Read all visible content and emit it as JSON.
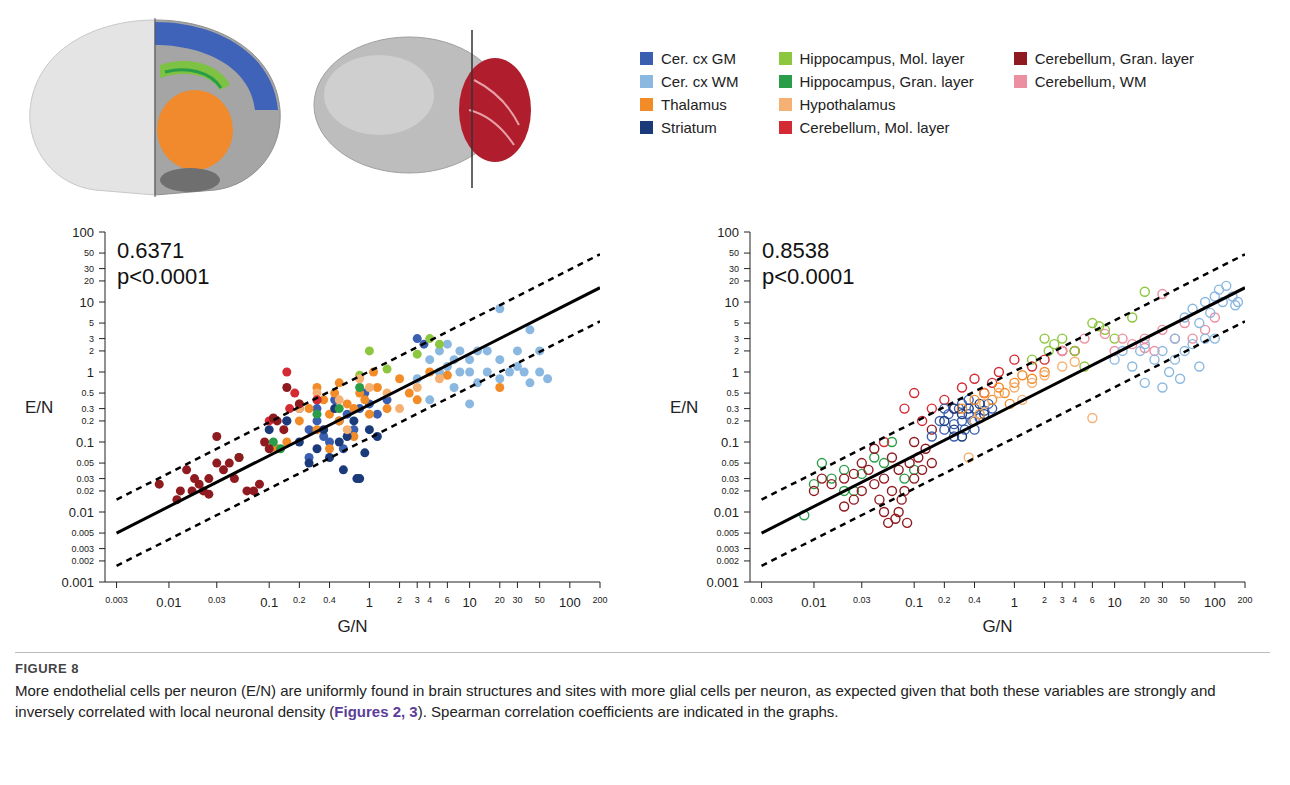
{
  "figure_label": "FIGURE 8",
  "caption": [
    "More endothelial cells per neuron (E/N) are uniformly found in brain structures and sites with more glial cells per neuron, as expected given that both these variables are strongly and inversely correlated with local neuronal density (",
    "Figures 2, 3",
    "). Spearman correlation coefficients are indicated in the graphs."
  ],
  "chart_data": [
    {
      "type": "scatter",
      "log": true,
      "marker": "circle",
      "x_label": "G/N",
      "y_label": "E/N",
      "spearman_r": 0.6371,
      "p_label": "p<0.0001",
      "xlim": [
        0.0023,
        200
      ],
      "ylim": [
        0.001,
        100
      ],
      "xticks": [
        0.003,
        0.01,
        0.03,
        0.1,
        0.2,
        0.4,
        1,
        2,
        3,
        4,
        6,
        10,
        20,
        30,
        50,
        100,
        200
      ],
      "yticks": [
        0.001,
        0.002,
        0.003,
        0.005,
        0.01,
        0.02,
        0.03,
        0.05,
        0.1,
        0.2,
        0.3,
        0.5,
        1,
        2,
        3,
        5,
        10,
        20,
        30,
        50,
        100
      ],
      "fit_lines": [
        {
          "x": [
            0.003,
            200
          ],
          "values": [
            0.005,
            16
          ],
          "line_style": "solid"
        },
        {
          "x": [
            0.003,
            200
          ],
          "values": [
            0.015,
            48
          ],
          "line_style": "dashed"
        },
        {
          "x": [
            0.003,
            200
          ],
          "values": [
            0.0017,
            5.3
          ],
          "line_style": "dashed"
        }
      ],
      "series": [
        {
          "name": "Cer. cx GM",
          "color": "#3a5fb0",
          "x": [
            0.15,
            0.2,
            0.25,
            0.3,
            0.35,
            0.4,
            0.5,
            0.6,
            0.7,
            0.8,
            1,
            1.2,
            0.45,
            0.55,
            0.25,
            0.9,
            3,
            3.5,
            1.5,
            0.3
          ],
          "values": [
            0.2,
            0.3,
            0.15,
            0.2,
            0.12,
            0.1,
            0.2,
            0.25,
            0.15,
            0.3,
            0.35,
            0.25,
            0.4,
            0.08,
            0.06,
            0.5,
            3,
            2.5,
            0.4,
            0.3
          ]
        },
        {
          "name": "Cer. cx WM",
          "color": "#8ab8e0",
          "x": [
            4,
            5,
            5,
            6,
            6,
            7,
            8,
            8,
            10,
            10,
            12,
            12,
            15,
            15,
            20,
            20,
            25,
            30,
            30,
            35,
            40,
            50,
            50,
            60,
            20,
            10,
            3,
            4,
            40,
            7
          ],
          "values": [
            1.5,
            2,
            1,
            1.2,
            2.5,
            1.5,
            1,
            2,
            1,
            1.5,
            2,
            0.7,
            1,
            2,
            1.5,
            0.8,
            1,
            1.2,
            2,
            1,
            0.7,
            1,
            2,
            0.8,
            8,
            0.35,
            0.8,
            0.4,
            4,
            0.6
          ]
        },
        {
          "name": "Thalamus",
          "color": "#f28c28",
          "x": [
            0.12,
            0.15,
            0.2,
            0.25,
            0.3,
            0.35,
            0.4,
            0.45,
            0.5,
            0.6,
            0.7,
            0.8,
            0.9,
            1,
            1.2,
            1.5,
            2,
            2.5,
            3,
            4,
            0.3,
            0.5,
            0.7,
            1.1,
            0.2,
            0.4,
            6,
            20
          ],
          "values": [
            0.08,
            0.1,
            0.2,
            0.3,
            0.15,
            0.4,
            0.25,
            0.5,
            0.2,
            0.35,
            0.3,
            0.5,
            0.4,
            0.25,
            0.6,
            0.3,
            0.8,
            0.5,
            0.4,
            1,
            0.6,
            0.7,
            0.12,
            1,
            0.35,
            0.08,
            0.9,
            0.6
          ]
        },
        {
          "name": "Striatum",
          "color": "#1b3a7a",
          "x": [
            0.15,
            0.2,
            0.25,
            0.3,
            0.35,
            0.4,
            0.5,
            0.6,
            0.7,
            0.75,
            0.8,
            0.9,
            1,
            0.45,
            0.55,
            1.2,
            0.3,
            0.1
          ],
          "values": [
            0.2,
            0.1,
            0.05,
            0.08,
            0.15,
            0.06,
            0.1,
            0.12,
            0.2,
            0.03,
            0.03,
            0.07,
            0.15,
            0.3,
            0.04,
            0.12,
            0.4,
            0.15
          ]
        },
        {
          "name": "Hippocampus, Mol. layer",
          "color": "#8dc63f",
          "x": [
            1,
            4,
            1.5,
            5,
            3,
            0.8
          ],
          "values": [
            2,
            3,
            1.1,
            2.5,
            1.8,
            0.9
          ]
        },
        {
          "name": "Hippocampus, Gran. layer",
          "color": "#2a9d48",
          "x": [
            0.05,
            0.11,
            0.3,
            0.5,
            0.8,
            0.13
          ],
          "values": [
            0.06,
            0.1,
            0.25,
            0.3,
            0.6,
            0.08
          ]
        },
        {
          "name": "Hypothalamus",
          "color": "#f5b173",
          "x": [
            0.2,
            0.3,
            0.5,
            0.8,
            1,
            1.5,
            2,
            0.6,
            3,
            5
          ],
          "values": [
            0.3,
            0.5,
            0.4,
            0.8,
            0.6,
            0.5,
            0.3,
            0.15,
            0.6,
            0.8
          ]
        },
        {
          "name": "Cerebellum, Mol. layer",
          "color": "#d42a33",
          "x": [
            0.15,
            0.18,
            0.16,
            0.3,
            0.1
          ],
          "values": [
            1,
            0.5,
            0.3,
            0.4,
            0.2
          ]
        },
        {
          "name": "Cerebellum, Gran. layer",
          "color": "#8f1a1f",
          "x": [
            0.008,
            0.012,
            0.013,
            0.015,
            0.017,
            0.02,
            0.022,
            0.025,
            0.03,
            0.03,
            0.035,
            0.04,
            0.045,
            0.05,
            0.06,
            0.07,
            0.08,
            0.09,
            0.1,
            0.12,
            0.14,
            0.15,
            0.2,
            0.11,
            0.025,
            0.018
          ],
          "values": [
            0.025,
            0.015,
            0.02,
            0.04,
            0.02,
            0.025,
            0.02,
            0.03,
            0.05,
            0.12,
            0.04,
            0.05,
            0.03,
            0.06,
            0.02,
            0.02,
            0.025,
            0.1,
            0.08,
            0.2,
            0.15,
            0.6,
            0.35,
            0.22,
            0.018,
            0.03
          ]
        }
      ]
    },
    {
      "type": "scatter",
      "log": true,
      "marker": "open_circle",
      "x_label": "G/N",
      "y_label": "E/N",
      "spearman_r": 0.8538,
      "p_label": "p<0.0001",
      "xlim": [
        0.0023,
        200
      ],
      "ylim": [
        0.001,
        100
      ],
      "xticks": [
        0.003,
        0.01,
        0.03,
        0.1,
        0.2,
        0.4,
        1,
        2,
        3,
        4,
        6,
        10,
        20,
        30,
        50,
        100,
        200
      ],
      "yticks": [
        0.001,
        0.002,
        0.003,
        0.005,
        0.01,
        0.02,
        0.03,
        0.05,
        0.1,
        0.2,
        0.3,
        0.5,
        1,
        2,
        3,
        5,
        10,
        20,
        30,
        50,
        100
      ],
      "fit_lines": [
        {
          "x": [
            0.003,
            200
          ],
          "values": [
            0.005,
            16
          ],
          "line_style": "solid"
        },
        {
          "x": [
            0.003,
            200
          ],
          "values": [
            0.015,
            48
          ],
          "line_style": "dashed"
        },
        {
          "x": [
            0.003,
            200
          ],
          "values": [
            0.0017,
            5.3
          ],
          "line_style": "dashed"
        }
      ],
      "series": [
        {
          "name": "Hippocampus, Gran. layer",
          "color": "#2a9d48",
          "x": [
            0.008,
            0.01,
            0.012,
            0.015,
            0.02,
            0.025,
            0.03,
            0.04,
            0.05,
            0.06,
            0.08,
            0.1,
            0.02
          ],
          "values": [
            0.009,
            0.025,
            0.05,
            0.03,
            0.04,
            0.02,
            0.035,
            0.06,
            0.05,
            0.1,
            0.03,
            0.04,
            0.02
          ]
        },
        {
          "name": "Cerebellum, Gran. layer",
          "color": "#8f1a1f",
          "x": [
            0.01,
            0.012,
            0.015,
            0.02,
            0.025,
            0.03,
            0.035,
            0.04,
            0.045,
            0.05,
            0.05,
            0.055,
            0.06,
            0.065,
            0.07,
            0.075,
            0.08,
            0.085,
            0.09,
            0.1,
            0.1,
            0.11,
            0.12,
            0.13,
            0.15,
            0.15,
            0.06,
            0.04,
            0.03,
            0.025,
            0.07,
            0.02
          ],
          "values": [
            0.02,
            0.03,
            0.025,
            0.03,
            0.015,
            0.02,
            0.04,
            0.025,
            0.015,
            0.03,
            0.01,
            0.007,
            0.02,
            0.008,
            0.04,
            0.015,
            0.02,
            0.007,
            0.05,
            0.03,
            0.1,
            0.06,
            0.04,
            0.08,
            0.05,
            0.15,
            0.06,
            0.08,
            0.05,
            0.035,
            0.01,
            0.012
          ]
        },
        {
          "name": "Cerebellum, Mol. layer",
          "color": "#d42a33",
          "x": [
            0.05,
            0.08,
            0.1,
            0.12,
            0.15,
            0.2,
            0.3,
            0.4,
            0.5,
            0.7,
            1,
            1.5,
            2,
            3,
            4,
            0.6,
            0.25
          ],
          "values": [
            0.1,
            0.3,
            0.5,
            0.2,
            0.3,
            0.4,
            0.6,
            0.8,
            0.5,
            1,
            1.5,
            1.2,
            1.5,
            2,
            2,
            0.7,
            0.3
          ]
        },
        {
          "name": "Cer. cx GM",
          "color": "#3a5fb0",
          "x": [
            0.15,
            0.18,
            0.2,
            0.22,
            0.25,
            0.28,
            0.3,
            0.32,
            0.35,
            0.38,
            0.4,
            0.45,
            0.5,
            0.55,
            0.6,
            0.25,
            0.3,
            0.4,
            0.2,
            0.35
          ],
          "values": [
            0.12,
            0.2,
            0.15,
            0.25,
            0.18,
            0.3,
            0.2,
            0.15,
            0.25,
            0.2,
            0.3,
            0.22,
            0.28,
            0.35,
            0.3,
            0.12,
            0.35,
            0.15,
            0.3,
            0.4
          ]
        },
        {
          "name": "Striatum",
          "color": "#1b3a7a",
          "x": [
            0.2,
            0.25,
            0.3,
            0.35,
            0.4,
            0.45,
            0.5,
            0.3,
            0.25
          ],
          "values": [
            0.2,
            0.15,
            0.25,
            0.3,
            0.2,
            0.35,
            0.25,
            0.12,
            0.3
          ]
        },
        {
          "name": "Thalamus",
          "color": "#f28c28",
          "x": [
            0.3,
            0.4,
            0.5,
            0.6,
            0.7,
            0.8,
            1,
            1.2,
            1.5,
            0.9,
            2,
            0.45
          ],
          "values": [
            0.3,
            0.4,
            0.5,
            0.4,
            0.6,
            0.5,
            0.7,
            0.9,
            0.8,
            0.35,
            1,
            0.25
          ]
        },
        {
          "name": "Hypothalamus",
          "color": "#f5b173",
          "x": [
            0.4,
            0.5,
            0.7,
            1,
            1.5,
            2,
            3,
            4,
            6,
            0.35,
            1.2
          ],
          "values": [
            0.2,
            0.35,
            0.5,
            0.6,
            0.7,
            0.9,
            1.2,
            1.4,
            0.22,
            0.06,
            0.4
          ]
        },
        {
          "name": "Hippocampus, Mol. layer",
          "color": "#8dc63f",
          "x": [
            2,
            2.5,
            3,
            2.2,
            4,
            6,
            8,
            10,
            5,
            20,
            15,
            7,
            1.5
          ],
          "values": [
            3,
            2.5,
            3,
            2,
            2,
            5,
            4,
            3,
            1.2,
            14,
            6,
            4.5,
            1.5
          ]
        },
        {
          "name": "Cerebellum, WM",
          "color": "#ec8fa0",
          "x": [
            3,
            5,
            8,
            10,
            12,
            15,
            20,
            25,
            30,
            40,
            50,
            60,
            80,
            100,
            30,
            20
          ],
          "values": [
            2,
            3,
            3.5,
            2,
            3,
            2.5,
            3,
            2,
            4,
            3,
            5,
            3,
            4,
            6,
            13,
            2.2
          ]
        },
        {
          "name": "Cer. cx WM",
          "color": "#8ab8e0",
          "x": [
            10,
            12,
            15,
            18,
            20,
            25,
            30,
            35,
            40,
            50,
            50,
            60,
            70,
            80,
            90,
            100,
            110,
            120,
            130,
            150,
            160,
            40,
            60,
            70,
            100,
            20,
            45,
            170,
            30,
            80
          ],
          "values": [
            1.5,
            2,
            1.2,
            2,
            2.5,
            1.5,
            2,
            1,
            1.5,
            2,
            6,
            8,
            5,
            10,
            7,
            12,
            15,
            10,
            17,
            12,
            9,
            3,
            2.5,
            1.2,
            3,
            0.7,
            0.8,
            10,
            0.6,
            3
          ]
        }
      ]
    }
  ]
}
